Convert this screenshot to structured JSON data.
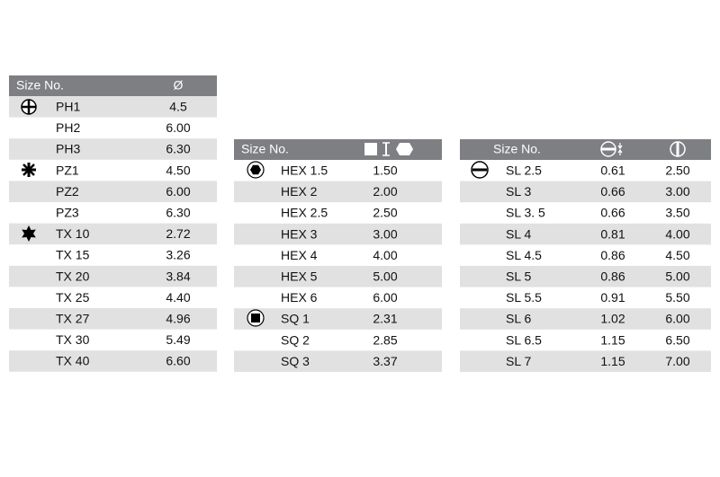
{
  "tables": [
    {
      "headers": [
        "Size No.",
        "Ø"
      ],
      "rows": [
        [
          "PH1",
          "4.5"
        ],
        [
          "PH2",
          "6.00"
        ],
        [
          "PH3",
          "6.30"
        ],
        [
          "PZ1",
          "4.50"
        ],
        [
          "PZ2",
          "6.00"
        ],
        [
          "PZ3",
          "6.30"
        ],
        [
          "TX 10",
          "2.72"
        ],
        [
          "TX 15",
          "3.26"
        ],
        [
          "TX 20",
          "3.84"
        ],
        [
          "TX 25",
          "4.40"
        ],
        [
          "TX 27",
          "4.96"
        ],
        [
          "TX 30",
          "5.49"
        ],
        [
          "TX 40",
          "6.60"
        ]
      ]
    },
    {
      "headers": [
        "Size No."
      ],
      "rows": [
        [
          "HEX 1.5",
          "1.50"
        ],
        [
          "HEX 2",
          "2.00"
        ],
        [
          "HEX 2.5",
          "2.50"
        ],
        [
          "HEX 3",
          "3.00"
        ],
        [
          "HEX 4",
          "4.00"
        ],
        [
          "HEX 5",
          "5.00"
        ],
        [
          "HEX 6",
          "6.00"
        ],
        [
          "SQ 1",
          "2.31"
        ],
        [
          "SQ 2",
          "2.85"
        ],
        [
          "SQ 3",
          "3.37"
        ]
      ]
    },
    {
      "headers": [
        "Size No."
      ],
      "rows": [
        [
          "SL 2.5",
          "0.61",
          "2.50"
        ],
        [
          "SL 3",
          "0.66",
          "3.00"
        ],
        [
          "SL 3. 5",
          "0.66",
          "3.50"
        ],
        [
          "SL 4",
          "0.81",
          "4.00"
        ],
        [
          "SL 4.5",
          "0.86",
          "4.50"
        ],
        [
          "SL 5",
          "0.86",
          "5.00"
        ],
        [
          "SL 5.5",
          "0.91",
          "5.50"
        ],
        [
          "SL 6",
          "1.02",
          "6.00"
        ],
        [
          "SL 6.5",
          "1.15",
          "6.50"
        ],
        [
          "SL 7",
          "1.15",
          "7.00"
        ]
      ]
    }
  ]
}
